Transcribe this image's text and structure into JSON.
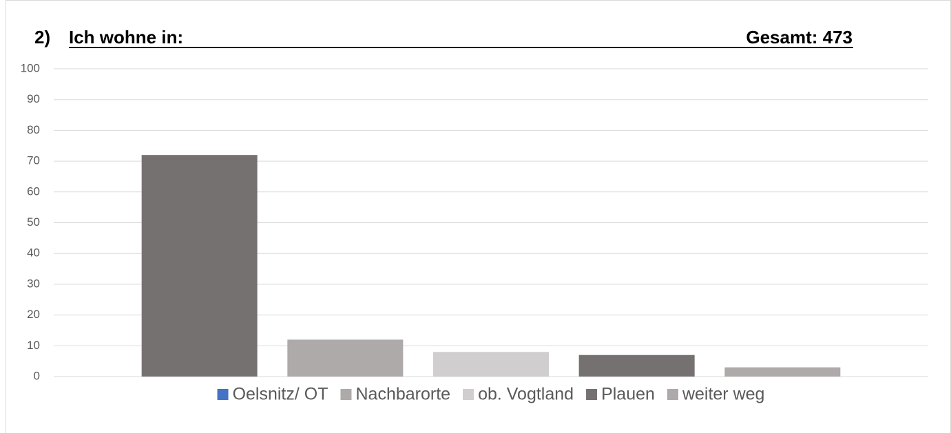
{
  "chart_data": {
    "type": "bar",
    "title_number": "2)",
    "title": "Ich wohne in:",
    "subtitle": "Gesamt: 473",
    "series": [
      {
        "name": "Oelsnitz/ OT",
        "color": "#4472c4",
        "values": [
          72
        ]
      },
      {
        "name": "Nachbarorte",
        "color": "#aeaaaa",
        "values": [
          12
        ]
      },
      {
        "name": "ob. Vogtland",
        "color": "#d0cece",
        "values": [
          8
        ]
      },
      {
        "name": "Plauen",
        "color": "#767171",
        "values": [
          7
        ]
      },
      {
        "name": "weiter weg",
        "color": "#aeaaaa",
        "values": [
          3
        ]
      }
    ],
    "bar_colors": [
      "#767171",
      "#aeaaaa",
      "#d0cece",
      "#767171",
      "#aeaaaa"
    ],
    "ylim": [
      0,
      100
    ],
    "yticks": [
      0,
      10,
      20,
      30,
      40,
      50,
      60,
      70,
      80,
      90,
      100
    ],
    "grid": true,
    "legend": "bottom"
  }
}
